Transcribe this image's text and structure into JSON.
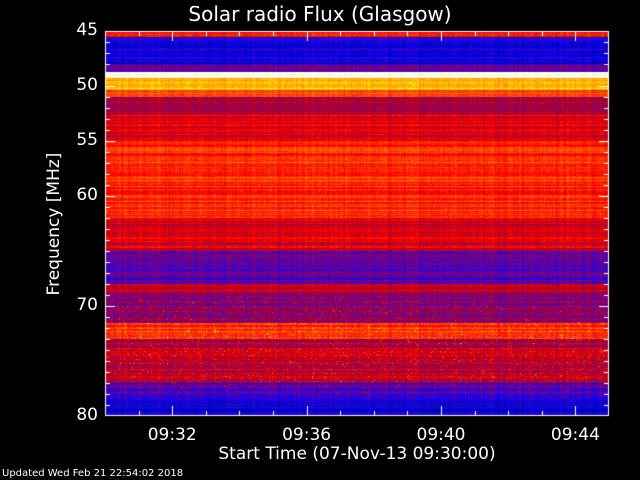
{
  "chart_data": {
    "type": "heatmap",
    "title": "Solar radio Flux (Glasgow)",
    "xlabel": "Start Time (07-Nov-13 09:30:00)",
    "ylabel": "Frequency [MHz]",
    "xlim": [
      "09:30",
      "09:45"
    ],
    "ylim": [
      45,
      80
    ],
    "y_inverted": true,
    "xticks": [
      "09:32",
      "09:36",
      "09:40",
      "09:44"
    ],
    "xtick_minutes": [
      2,
      6,
      10,
      14
    ],
    "yticks": [
      45,
      50,
      55,
      60,
      70,
      80
    ],
    "colormap": [
      "#000000",
      "#0000ff",
      "#6400a0",
      "#b4001e",
      "#ff0000",
      "#ff6400",
      "#ffaa00",
      "#ffff00",
      "#ffffff"
    ],
    "band_intensity_profile": [
      {
        "from": 45,
        "to": 45.5,
        "level": 0.55
      },
      {
        "from": 45.5,
        "to": 48,
        "level": 0.2
      },
      {
        "from": 48,
        "to": 48.7,
        "level": 0.32
      },
      {
        "from": 48.7,
        "to": 49.2,
        "level": 1.0
      },
      {
        "from": 49.2,
        "to": 50.3,
        "level": 0.82
      },
      {
        "from": 50.3,
        "to": 51,
        "level": 0.68
      },
      {
        "from": 51,
        "to": 52.5,
        "level": 0.42
      },
      {
        "from": 52.5,
        "to": 55,
        "level": 0.5
      },
      {
        "from": 55,
        "to": 62,
        "level": 0.6
      },
      {
        "from": 62,
        "to": 65,
        "level": 0.5
      },
      {
        "from": 65,
        "to": 68,
        "level": 0.3
      },
      {
        "from": 68,
        "to": 69,
        "level": 0.45
      },
      {
        "from": 69,
        "to": 71.5,
        "level": 0.38
      },
      {
        "from": 71.5,
        "to": 73,
        "level": 0.6
      },
      {
        "from": 73,
        "to": 77,
        "level": 0.45
      },
      {
        "from": 77,
        "to": 78.5,
        "level": 0.3
      },
      {
        "from": 78.5,
        "to": 80,
        "level": 0.2
      }
    ]
  },
  "footer": {
    "updated": "Updated Wed Feb 21 22:54:02 2018"
  }
}
